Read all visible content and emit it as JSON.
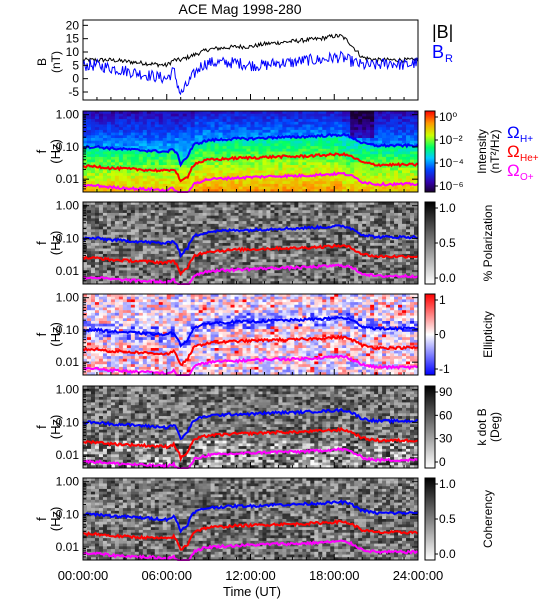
{
  "title": "ACE Mag 1998-280",
  "x_axis": {
    "label": "Time (UT)",
    "ticks": [
      "00:00:00",
      "06:00:00",
      "12:00:00",
      "18:00:00",
      "24:00:00"
    ],
    "range_hours": [
      0,
      24
    ]
  },
  "legend_top": {
    "babs": "|B|",
    "br": "B",
    "br_sub": "R",
    "babs_color": "#000000",
    "br_color": "#0000ff"
  },
  "legend_gyro": {
    "h": "Ω",
    "h_sub": "H+",
    "h_color": "#0000ff",
    "he": "Ω",
    "he_sub": "He+",
    "he_color": "#ff0000",
    "o": "Ω",
    "o_sub": "O+",
    "o_color": "#ff00ff"
  },
  "panel_labels": {
    "b_main": "B",
    "b_unit": "(nT)",
    "f_main": "f",
    "f_unit": "(Hz)"
  },
  "f_ticks": [
    "1.00",
    "0.10",
    "0.01"
  ],
  "colorbars": [
    {
      "label": "Intensity (nT²/Hz)",
      "label1": "Intensity",
      "label2": "(nT²/Hz)",
      "ticks": [
        "10⁰",
        "10⁻²",
        "10⁻⁴",
        "10⁻⁶"
      ],
      "type": "rainbow"
    },
    {
      "label": "% Polarization",
      "ticks": [
        "1.0",
        "0.5",
        "0.0"
      ],
      "type": "gray"
    },
    {
      "label": "Ellipticity",
      "ticks": [
        "1",
        "0",
        "-1"
      ],
      "type": "bwr"
    },
    {
      "label1": "k dot B",
      "label2": "(Deg)",
      "ticks": [
        "90",
        "60",
        "30",
        "0"
      ],
      "type": "gray"
    },
    {
      "label": "Coherency",
      "ticks": [
        "1.0",
        "0.5",
        "0.0"
      ],
      "type": "gray"
    }
  ],
  "chart_data": {
    "type": "line",
    "title": "ACE Mag 1998-280",
    "xlabel": "Time (UT)",
    "x_hours": [
      0,
      1,
      2,
      3,
      4,
      5,
      6,
      6.5,
      7,
      7.5,
      8,
      8.5,
      9,
      10,
      11,
      12,
      13,
      14,
      15,
      16,
      17,
      18,
      18.5,
      19,
      20,
      21,
      22,
      23,
      24
    ],
    "top_panel": {
      "ylabel": "B (nT)",
      "ylim": [
        -8,
        22
      ],
      "yticks": [
        -5,
        0,
        5,
        10,
        15,
        20
      ],
      "series": [
        {
          "name": "|B|",
          "values": [
            7,
            7,
            7,
            6.5,
            6,
            5.5,
            5,
            7,
            7,
            8,
            9,
            10,
            11,
            11.5,
            12,
            12,
            13,
            13.5,
            14,
            14.5,
            15,
            16,
            16,
            14,
            8,
            7,
            7,
            7,
            7
          ]
        },
        {
          "name": "B_R",
          "values": [
            5,
            5,
            4,
            3,
            2,
            1,
            0,
            3,
            -6,
            -2,
            2,
            5,
            6,
            6,
            6,
            5,
            5,
            6,
            6,
            7,
            7,
            8,
            8,
            7,
            5,
            5,
            6,
            5,
            6
          ]
        }
      ]
    },
    "spectrogram_panels": [
      {
        "name": "Intensity",
        "ylabel": "f (Hz)",
        "yscale": "log",
        "ylim": [
          0.004,
          1.3
        ],
        "cbar_range": "1e-6 to 1e0"
      },
      {
        "name": "% Polarization",
        "ylabel": "f (Hz)",
        "yscale": "log",
        "ylim": [
          0.004,
          1.3
        ],
        "cbar_range": [
          0,
          1
        ]
      },
      {
        "name": "Ellipticity",
        "ylabel": "f (Hz)",
        "yscale": "log",
        "ylim": [
          0.004,
          1.3
        ],
        "cbar_range": [
          -1,
          1
        ]
      },
      {
        "name": "k dot B",
        "ylabel": "f (Hz)",
        "yscale": "log",
        "ylim": [
          0.004,
          1.3
        ],
        "cbar_range": [
          0,
          90
        ]
      },
      {
        "name": "Coherency",
        "ylabel": "f (Hz)",
        "yscale": "log",
        "ylim": [
          0.004,
          1.3
        ],
        "cbar_range": [
          0,
          1
        ]
      }
    ],
    "gyrofrequency_lines": {
      "series": [
        {
          "name": "Ω H+",
          "values_hz": [
            0.1,
            0.1,
            0.09,
            0.085,
            0.08,
            0.075,
            0.07,
            0.085,
            0.03,
            0.05,
            0.12,
            0.14,
            0.16,
            0.17,
            0.18,
            0.18,
            0.19,
            0.2,
            0.2,
            0.21,
            0.22,
            0.23,
            0.24,
            0.22,
            0.13,
            0.11,
            0.11,
            0.11,
            0.11
          ]
        },
        {
          "name": "Ω He+",
          "values_hz": [
            0.025,
            0.025,
            0.022,
            0.021,
            0.02,
            0.019,
            0.018,
            0.021,
            0.008,
            0.012,
            0.03,
            0.035,
            0.04,
            0.042,
            0.045,
            0.046,
            0.048,
            0.05,
            0.05,
            0.052,
            0.055,
            0.058,
            0.06,
            0.055,
            0.033,
            0.028,
            0.028,
            0.028,
            0.028
          ]
        },
        {
          "name": "Ω O+",
          "values_hz": [
            0.0063,
            0.0063,
            0.0056,
            0.0053,
            0.005,
            0.0048,
            0.0045,
            0.0053,
            0.002,
            0.003,
            0.0075,
            0.0088,
            0.01,
            0.0105,
            0.011,
            0.0115,
            0.012,
            0.0125,
            0.0125,
            0.013,
            0.0138,
            0.0145,
            0.015,
            0.0138,
            0.0083,
            0.007,
            0.007,
            0.007,
            0.007
          ]
        }
      ]
    }
  }
}
